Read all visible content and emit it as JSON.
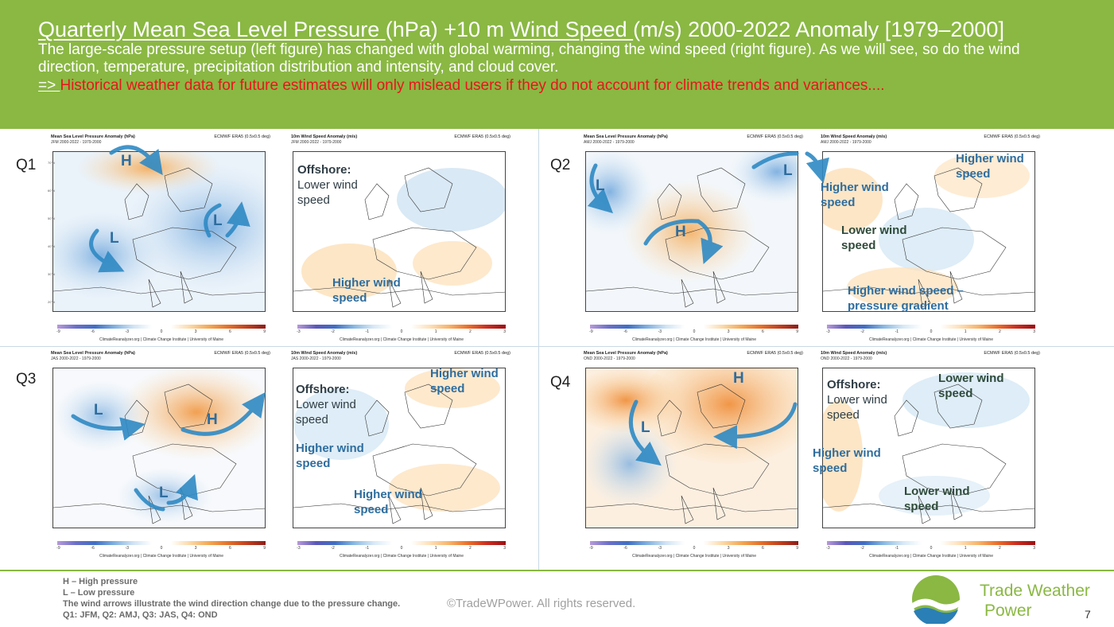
{
  "header": {
    "title_part1": "Quarterly Mean Sea Level Pressure ",
    "title_part2": "(hPa) +10 m ",
    "title_part3": "Wind Speed ",
    "title_part4": "(m/s) 2000-2022 Anomaly [1979–2000]",
    "subtitle": "The large-scale pressure setup (left figure) has changed with global warming, changing the wind speed (right figure). As we will see, so do the wind direction, temperature, precipitation distribution and intensity, and cloud cover.",
    "arrow": "=> ",
    "conclusion": "Historical weather data for future estimates will only mislead users if they do not account for climate trends and variances...."
  },
  "common": {
    "source": "ECMWF ERA5 (0.5x0.5 deg)",
    "credit": "ClimateReanalyzer.org | Climate Change Institute | University of Maine",
    "pressure_title": "Mean Sea Level Pressure Anomaly (hPa)",
    "wind_title": "10m Wind Speed Anomaly (m/s)",
    "pressure_ticks": [
      "-9",
      "-6",
      "-3",
      "0",
      "3",
      "6",
      "9"
    ],
    "wind_ticks": [
      "-3",
      "-2",
      "-1",
      "0",
      "1",
      "2",
      "3"
    ],
    "lat_ticks": [
      "70°N",
      "60°N",
      "50°N",
      "40°N",
      "30°N",
      "20°N"
    ]
  },
  "quarters": [
    {
      "label": "Q1",
      "subtitle": "JFM 2000-2022 - 1979-2000",
      "pressure_marks": [
        {
          "text": "H"
        },
        {
          "text": "L"
        },
        {
          "text": "L"
        }
      ],
      "wind_annotations": [
        {
          "head": "Offshore:",
          "body1": "Lower wind",
          "body2": "speed"
        },
        {
          "line1": "Higher wind",
          "line2": "speed"
        }
      ]
    },
    {
      "label": "Q2",
      "subtitle": "AMJ 2000-2022 - 1979-2000",
      "pressure_marks": [
        {
          "text": "L"
        },
        {
          "text": "H"
        },
        {
          "text": "L"
        }
      ],
      "wind_annotations": [
        {
          "line1": "Higher wind",
          "line2": "speed"
        },
        {
          "line1": "Higher wind",
          "line2": "speed"
        },
        {
          "line1": "Lower wind",
          "line2": "speed"
        },
        {
          "line1": "Higher wind speed –",
          "line2": "pressure gradient"
        }
      ]
    },
    {
      "label": "Q3",
      "subtitle": "JAS 2000-2022 - 1979-2000",
      "pressure_marks": [
        {
          "text": "L"
        },
        {
          "text": "H"
        },
        {
          "text": "L"
        }
      ],
      "wind_annotations": [
        {
          "head": "Offshore:",
          "body1": "Lower wind",
          "body2": "speed"
        },
        {
          "line1": "Higher wind",
          "line2": "speed"
        },
        {
          "line1": "Higher wind",
          "line2": "speed"
        },
        {
          "line1": "Higher wind",
          "line2": "speed"
        }
      ]
    },
    {
      "label": "Q4",
      "subtitle": "OND 2000-2022 - 1979-2000",
      "pressure_marks": [
        {
          "text": "H"
        },
        {
          "text": "L"
        }
      ],
      "wind_annotations": [
        {
          "head": "Offshore:",
          "body1": "Lower wind",
          "body2": "speed"
        },
        {
          "line1": "Lower wind",
          "line2": "speed"
        },
        {
          "line1": "Higher wind",
          "line2": "speed"
        },
        {
          "line1": "Lower wind",
          "line2": "speed"
        }
      ]
    }
  ],
  "footer": {
    "legend_h": "H – High pressure",
    "legend_l": "L – Low pressure",
    "legend_arrows": "The wind arrows illustrate the wind direction change due to the pressure change.",
    "legend_quarters": "Q1: JFM, Q2: AMJ, Q3: JAS, Q4: OND",
    "copyright": "©TradeWPower. All rights reserved.",
    "brand_line1": "Trade Weather",
    "brand_line2": "Power",
    "page_number": "7"
  },
  "colors": {
    "header_green": "#8ab843",
    "alert_red": "#e8161c",
    "annotation_blue": "#2e6d9e",
    "high_orange": "#f3a955",
    "low_blue": "#7fb0df"
  }
}
